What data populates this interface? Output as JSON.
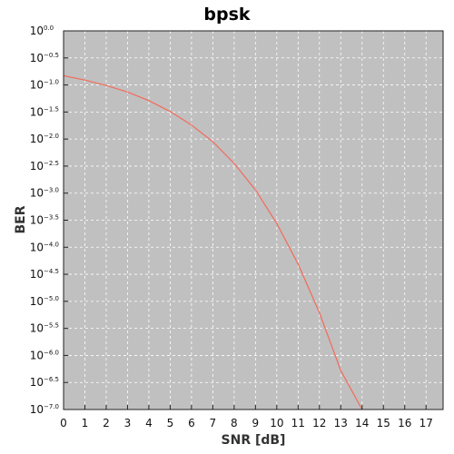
{
  "chart_data": {
    "type": "line",
    "title": "bpsk",
    "xlabel": "SNR [dB]",
    "ylabel": "BER",
    "xlim": [
      0,
      17.8
    ],
    "ylim_log10": [
      -7.0,
      0.0
    ],
    "log_scale_y": true,
    "grid": true,
    "x_ticks": [
      0,
      1,
      2,
      3,
      4,
      5,
      6,
      7,
      8,
      9,
      10,
      11,
      12,
      13,
      14,
      15,
      16,
      17
    ],
    "x_tick_labels": [
      "0",
      "1",
      "2",
      "3",
      "4",
      "5",
      "6",
      "7",
      "8",
      "9",
      "10",
      "11",
      "12",
      "13",
      "14",
      "15",
      "16",
      "17"
    ],
    "y_ticks_log10": [
      0.0,
      -0.5,
      -1.0,
      -1.5,
      -2.0,
      -2.5,
      -3.0,
      -3.5,
      -4.0,
      -4.5,
      -5.0,
      -5.5,
      -6.0,
      -6.5,
      -7.0
    ],
    "y_tick_base": "10",
    "y_tick_exponents": [
      "0.0",
      "−0.5",
      "−1.0",
      "−1.5",
      "−2.0",
      "−2.5",
      "−3.0",
      "−3.5",
      "−4.0",
      "−4.5",
      "−5.0",
      "−5.5",
      "−6.0",
      "−6.5",
      "−7.0"
    ],
    "series": [
      {
        "color": "#f26b5b",
        "x": [
          0,
          1,
          2,
          3,
          4,
          5,
          6,
          7,
          8,
          9,
          10,
          11,
          12,
          13,
          14
        ],
        "y_log10": [
          -0.83,
          -0.91,
          -1.01,
          -1.13,
          -1.29,
          -1.49,
          -1.74,
          -2.05,
          -2.45,
          -2.94,
          -3.56,
          -4.31,
          -5.21,
          -6.28,
          -7.0
        ]
      }
    ],
    "background_color": "#c0c0c0",
    "grid_color": "#ffffff"
  }
}
